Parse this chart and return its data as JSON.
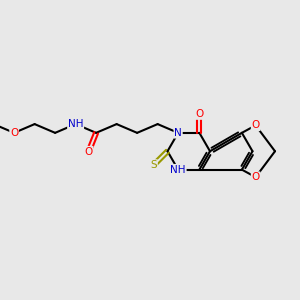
{
  "bg_color": "#e8e8e8",
  "atom_colors": {
    "C": "#000000",
    "N": "#0000cc",
    "O": "#ff0000",
    "S": "#999900",
    "H": "#008080"
  },
  "bond_color": "#000000",
  "bond_width": 1.5,
  "figsize": [
    3.0,
    3.0
  ],
  "dpi": 100,
  "xlim": [
    0,
    12
  ],
  "ylim": [
    2,
    9
  ]
}
